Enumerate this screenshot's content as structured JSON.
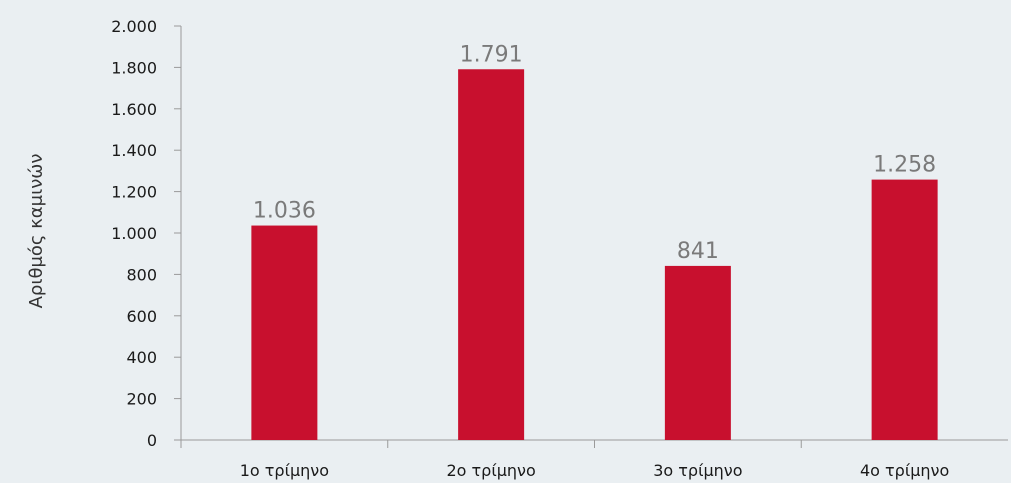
{
  "chart_data": {
    "type": "bar",
    "categories": [
      "1ο τρίμηνο",
      "2ο τρίμηνο",
      "3ο τρίμηνο",
      "4ο τρίμηνο"
    ],
    "values": [
      1036,
      1791,
      841,
      1258
    ],
    "data_labels": [
      "1.036",
      "1.791",
      "841",
      "1.258"
    ],
    "ylabel": "Αριθμός καμινών",
    "xlabel": "",
    "title": "",
    "ylim": [
      0,
      2000
    ],
    "yticks": [
      0,
      200,
      400,
      600,
      800,
      1000,
      1200,
      1400,
      1600,
      1800,
      2000
    ],
    "ytick_labels": [
      "0",
      "200",
      "400",
      "600",
      "800",
      "1.000",
      "1.200",
      "1.400",
      "1.600",
      "1.800",
      "2.000"
    ],
    "grid": false,
    "legend": "none",
    "colors": {
      "bar": "#c8102e",
      "background": "#eaeff2",
      "axis": "#9a9a9a",
      "data_label": "#7a7a7a"
    }
  }
}
